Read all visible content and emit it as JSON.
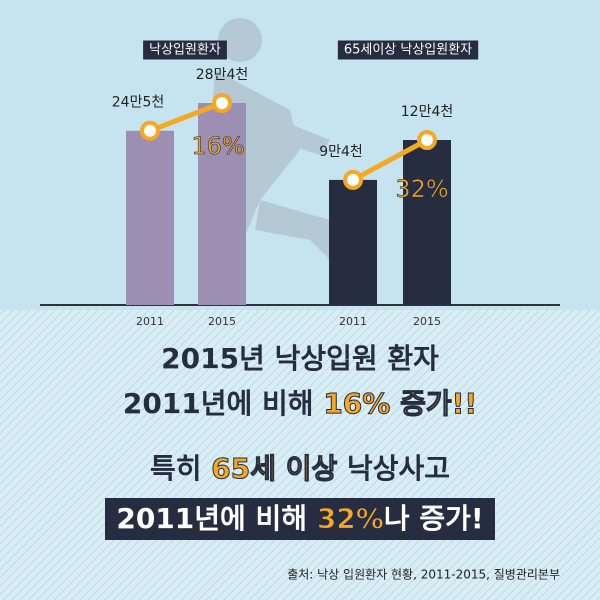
{
  "chart_data": [
    {
      "type": "bar",
      "title": "낙상입원환자",
      "categories": [
        "2011",
        "2015"
      ],
      "values": [
        245000,
        284000
      ],
      "value_labels": [
        "24만5천",
        "28만4천"
      ],
      "color": "#9d8fb3",
      "line_color": "#f7a823",
      "annotation": "16%"
    },
    {
      "type": "bar",
      "title": "65세이상 낙상입원환자",
      "categories": [
        "2011",
        "2015"
      ],
      "values": [
        94000,
        124000
      ],
      "value_labels": [
        "9만4천",
        "12만4천"
      ],
      "color": "#262d40",
      "line_color": "#f7a823",
      "annotation": "32%"
    }
  ],
  "headline": [
    [
      {
        "text": "2015년 낙상입원 환자",
        "highlight": false
      }
    ],
    [
      {
        "text": "2011년에 비해 ",
        "highlight": false
      },
      {
        "text": "16% 증가!!",
        "highlight": true
      }
    ],
    [
      {
        "text": "특히 ",
        "highlight": false
      },
      {
        "text": "65세 이상",
        "highlight": true
      },
      {
        "text": " 낙상사고",
        "highlight": false
      }
    ],
    [
      {
        "text": "2011년에 비해 ",
        "highlight": false
      },
      {
        "text": "32%",
        "highlight": true
      },
      {
        "text": "나 증가!",
        "highlight": false
      }
    ]
  ],
  "source": "출처: 낙상 입원환자 현황, 2011-2015, 질병관리본부"
}
